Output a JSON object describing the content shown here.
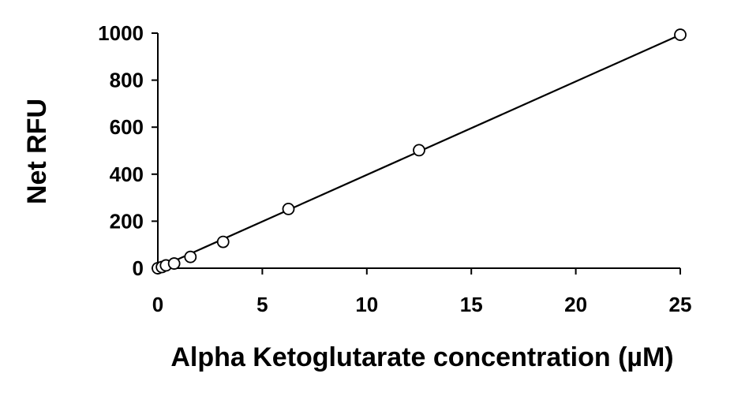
{
  "chart_data": {
    "type": "scatter",
    "title": "",
    "xlabel": "Alpha Ketoglutarate concentration (µM)",
    "ylabel": "Net RFU",
    "xlim": [
      0,
      25
    ],
    "ylim": [
      0,
      1000
    ],
    "x_ticks": [
      "0",
      "5",
      "10",
      "15",
      "20",
      "25"
    ],
    "y_ticks": [
      "0",
      "200",
      "400",
      "600",
      "800",
      "1000"
    ],
    "grid": false,
    "legend": "none",
    "marker": "open-circle",
    "series": [
      {
        "x": [
          0,
          0.195,
          0.39,
          0.78,
          1.56,
          3.125,
          6.25,
          12.5,
          25
        ],
        "y": [
          0,
          5,
          12,
          20,
          48,
          112,
          252,
          502,
          993
        ]
      }
    ],
    "trendline": {
      "type": "linear",
      "x": [
        0,
        25
      ],
      "y": [
        0,
        993
      ]
    },
    "colors": {
      "line": "#000000",
      "marker_stroke": "#000000",
      "marker_fill": "#ffffff"
    }
  }
}
